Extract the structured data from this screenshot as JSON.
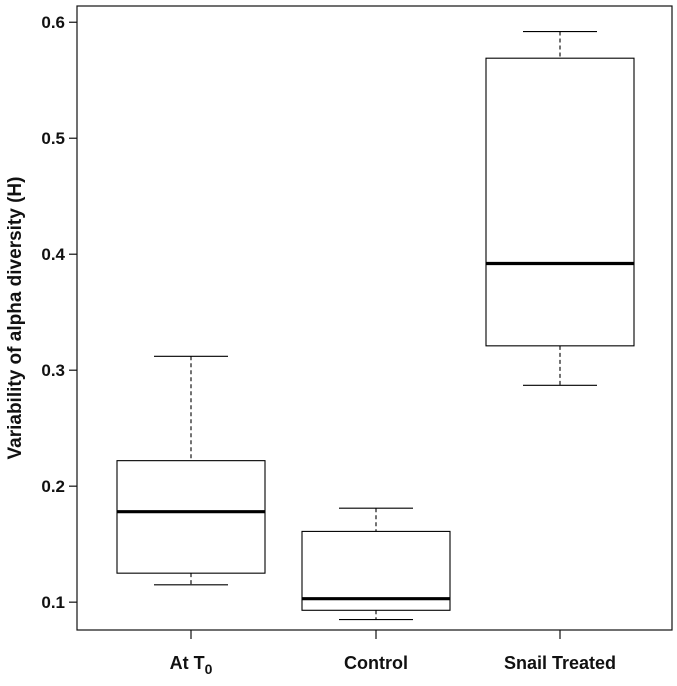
{
  "chart_data": {
    "type": "box",
    "title": "",
    "xlabel": "",
    "ylabel": "Variability of alpha diversity (H)",
    "ylim": [
      0.076,
      0.614
    ],
    "yticks": [
      "0.1",
      "0.2",
      "0.3",
      "0.4",
      "0.5",
      "0.6"
    ],
    "grid": false,
    "legend": "none",
    "colors": {
      "axis": "#111111",
      "box_fill": "#ffffff",
      "stroke": "#000000"
    },
    "categories": [
      {
        "label": "At T",
        "subscript": "0"
      },
      {
        "label": "Control",
        "subscript": ""
      },
      {
        "label": "Snail Treated",
        "subscript": ""
      }
    ],
    "boxes": [
      {
        "min": 0.115,
        "q1": 0.125,
        "median": 0.178,
        "q3": 0.222,
        "max": 0.312
      },
      {
        "min": 0.085,
        "q1": 0.093,
        "median": 0.103,
        "q3": 0.161,
        "max": 0.181
      },
      {
        "min": 0.287,
        "q1": 0.321,
        "median": 0.392,
        "q3": 0.569,
        "max": 0.592
      }
    ]
  }
}
